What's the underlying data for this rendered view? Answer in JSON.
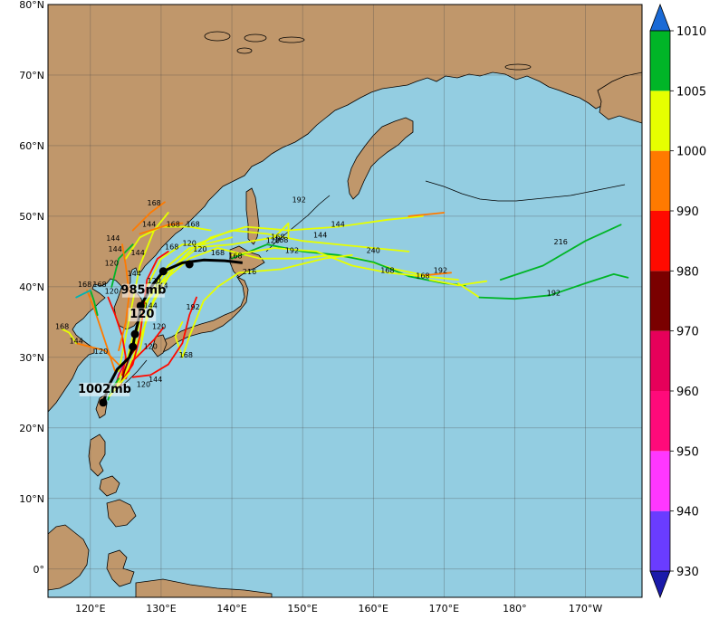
{
  "map": {
    "title": "",
    "extent": {
      "lon_min": 114,
      "lon_max": 198,
      "lat_min": -4,
      "lat_max": 80
    },
    "lat_ticks": [
      {
        "lat": 80,
        "label": "80°N"
      },
      {
        "lat": 70,
        "label": "70°N"
      },
      {
        "lat": 60,
        "label": "60°N"
      },
      {
        "lat": 50,
        "label": "50°N"
      },
      {
        "lat": 40,
        "label": "40°N"
      },
      {
        "lat": 30,
        "label": "30°N"
      },
      {
        "lat": 20,
        "label": "20°N"
      },
      {
        "lat": 10,
        "label": "10°N"
      },
      {
        "lat": 0,
        "label": "0°"
      }
    ],
    "lon_ticks": [
      {
        "lon": 120,
        "label": "120°E"
      },
      {
        "lon": 130,
        "label": "130°E"
      },
      {
        "lon": 140,
        "label": "140°E"
      },
      {
        "lon": 150,
        "label": "150°E"
      },
      {
        "lon": 160,
        "label": "160°E"
      },
      {
        "lon": 170,
        "label": "170°E"
      },
      {
        "lon": 180,
        "label": "180°"
      },
      {
        "lon": 190,
        "label": "170°W"
      }
    ],
    "colors": {
      "ocean": "#93cde1",
      "land": "#c0976b",
      "grid": "#4a4a4a"
    }
  },
  "colorbar": {
    "levels": [
      {
        "value": 930,
        "label": "930",
        "color": "#6a3cff"
      },
      {
        "value": 940,
        "label": "940",
        "color": "#ff37ff"
      },
      {
        "value": 950,
        "label": "950",
        "color": "#ff0a7a"
      },
      {
        "value": 960,
        "label": "960",
        "color": "#e6005a"
      },
      {
        "value": 970,
        "label": "970",
        "color": "#7a0000"
      },
      {
        "value": 980,
        "label": "980",
        "color": "#ff0a00"
      },
      {
        "value": 990,
        "label": "990",
        "color": "#ff7a00"
      },
      {
        "value": 1000,
        "label": "1000",
        "color": "#e6ff00"
      },
      {
        "value": 1005,
        "label": "1005",
        "color": "#00b527"
      },
      {
        "value": 1010,
        "label": "1010",
        "color": "#00b3b3"
      }
    ],
    "under_color": "#1a1aaa",
    "over_color": "#1a6ad6"
  },
  "chart_data": {
    "type": "map-tracks",
    "main_track": [
      [
        121.8,
        23.6
      ],
      [
        122.6,
        26.0
      ],
      [
        123.8,
        28.3
      ],
      [
        125.5,
        30.0
      ],
      [
        126.0,
        31.5
      ],
      [
        126.3,
        33.3
      ],
      [
        126.8,
        35.3
      ],
      [
        127.1,
        37.3
      ],
      [
        128.8,
        40.3
      ],
      [
        130.3,
        42.2
      ],
      [
        133.0,
        43.4
      ],
      [
        136.0,
        43.8
      ],
      [
        139.0,
        43.7
      ],
      [
        141.5,
        43.4
      ]
    ],
    "main_points": [
      [
        121.8,
        23.6
      ],
      [
        126.0,
        31.5
      ],
      [
        126.3,
        33.3
      ],
      [
        127.1,
        37.3
      ],
      [
        130.3,
        42.2
      ],
      [
        134.0,
        43.2
      ]
    ],
    "annotations": [
      {
        "text": "1002mb",
        "lon": 122.0,
        "lat": 25.0
      },
      {
        "text": "985mb",
        "lon": 127.5,
        "lat": 39.0
      },
      {
        "text": "120",
        "lon": 127.3,
        "lat": 35.6
      }
    ],
    "ensemble_tracks": [
      {
        "color": "#e6ff00",
        "points": [
          [
            123.5,
            25.5
          ],
          [
            125,
            29
          ],
          [
            126,
            33
          ],
          [
            128,
            38
          ],
          [
            131,
            42
          ],
          [
            135,
            46
          ],
          [
            140,
            48
          ],
          [
            145,
            47.5
          ],
          [
            150,
            46.5
          ],
          [
            155,
            46
          ],
          [
            160,
            45.5
          ],
          [
            165,
            45
          ]
        ]
      },
      {
        "color": "#e6ff00",
        "points": [
          [
            124,
            26
          ],
          [
            126,
            30
          ],
          [
            127.5,
            34
          ],
          [
            129,
            38
          ],
          [
            132,
            43
          ],
          [
            137,
            47
          ],
          [
            142,
            48.5
          ],
          [
            148,
            48
          ],
          [
            155,
            48.5
          ],
          [
            162,
            49.5
          ],
          [
            167,
            50
          ]
        ]
      },
      {
        "color": "#ff7a00",
        "points": [
          [
            165,
            50
          ],
          [
            170,
            50.5
          ]
        ]
      },
      {
        "color": "#e6ff00",
        "points": [
          [
            124,
            27
          ],
          [
            126,
            31
          ],
          [
            127,
            35
          ],
          [
            128.5,
            39
          ],
          [
            131,
            43
          ],
          [
            134,
            45.5
          ],
          [
            140,
            46
          ],
          [
            146,
            47
          ],
          [
            148,
            49
          ],
          [
            148,
            47
          ]
        ]
      },
      {
        "color": "#e6ff00",
        "points": [
          [
            124.5,
            27
          ],
          [
            127,
            31
          ],
          [
            128,
            36
          ],
          [
            130,
            40.5
          ],
          [
            134,
            44
          ],
          [
            138,
            45.5
          ],
          [
            144,
            44
          ],
          [
            150,
            44
          ],
          [
            154,
            44.5
          ],
          [
            158,
            44
          ],
          [
            163,
            42.5
          ],
          [
            168,
            41.5
          ]
        ]
      },
      {
        "color": "#ff7a00",
        "points": [
          [
            166,
            41.5
          ],
          [
            171,
            42
          ]
        ]
      },
      {
        "color": "#00b527",
        "points": [
          [
            140,
            44
          ],
          [
            145,
            46
          ],
          [
            150,
            45
          ],
          [
            155,
            44.5
          ],
          [
            160,
            43.5
          ],
          [
            165,
            41.5
          ],
          [
            170,
            40.5
          ],
          [
            173,
            40.2
          ]
        ]
      },
      {
        "color": "#e6ff00",
        "points": [
          [
            168,
            41
          ],
          [
            172,
            40.2
          ],
          [
            176,
            40.8
          ]
        ]
      },
      {
        "color": "#00b527",
        "points": [
          [
            178,
            41
          ],
          [
            184,
            43
          ],
          [
            190,
            46.5
          ],
          [
            195,
            48.8
          ]
        ]
      },
      {
        "color": "#e6ff00",
        "points": [
          [
            140,
            44.5
          ],
          [
            146,
            45.5
          ],
          [
            152,
            45
          ],
          [
            157,
            43
          ],
          [
            162,
            42
          ],
          [
            167,
            41.5
          ],
          [
            172,
            41
          ]
        ]
      },
      {
        "color": "#e6ff00",
        "points": [
          [
            172,
            40.5
          ],
          [
            175,
            38.5
          ]
        ]
      },
      {
        "color": "#00b527",
        "points": [
          [
            175,
            38.5
          ],
          [
            180,
            38.3
          ],
          [
            185,
            38.8
          ],
          [
            190,
            40.5
          ],
          [
            194,
            41.8
          ],
          [
            196,
            41.3
          ]
        ]
      },
      {
        "color": "#e6ff00",
        "points": [
          [
            133,
            35
          ],
          [
            132,
            33
          ],
          [
            133,
            30
          ],
          [
            134,
            33
          ],
          [
            136,
            38
          ],
          [
            138,
            40
          ],
          [
            141,
            42
          ],
          [
            147,
            42.5
          ],
          [
            153,
            44
          ],
          [
            157,
            44.5
          ]
        ]
      },
      {
        "color": "#e6ff00",
        "points": [
          [
            125,
            29
          ],
          [
            127,
            33
          ],
          [
            128,
            40
          ],
          [
            130,
            44
          ],
          [
            133,
            46
          ],
          [
            136,
            46
          ],
          [
            140,
            47
          ]
        ]
      },
      {
        "color": "#e6ff00",
        "points": [
          [
            124,
            28
          ],
          [
            125,
            33
          ],
          [
            126,
            38
          ],
          [
            127,
            43
          ],
          [
            129,
            48
          ],
          [
            131,
            50.5
          ]
        ]
      },
      {
        "color": "#ff7a00",
        "points": [
          [
            126,
            48
          ],
          [
            128.5,
            50.5
          ],
          [
            130.5,
            52
          ]
        ]
      },
      {
        "color": "#00b527",
        "points": [
          [
            123,
            40
          ],
          [
            124,
            44
          ],
          [
            126,
            46
          ]
        ]
      },
      {
        "color": "#e6ff00",
        "points": [
          [
            125,
            44
          ],
          [
            127,
            47
          ],
          [
            130,
            48.5
          ],
          [
            134,
            48.5
          ],
          [
            137,
            48
          ]
        ]
      },
      {
        "color": "#ff7a00",
        "points": [
          [
            127,
            47.5
          ],
          [
            131,
            48.8
          ],
          [
            133,
            49
          ]
        ]
      },
      {
        "color": "#ff0a00",
        "points": [
          [
            124,
            26
          ],
          [
            126,
            29
          ],
          [
            127,
            33
          ],
          [
            127.5,
            37
          ],
          [
            128,
            41
          ],
          [
            129.5,
            44
          ],
          [
            131,
            45
          ]
        ]
      },
      {
        "color": "#ff0a00",
        "points": [
          [
            125,
            27
          ],
          [
            126,
            29.5
          ],
          [
            127.5,
            31
          ],
          [
            129,
            32.5
          ],
          [
            130.3,
            34.2
          ]
        ]
      },
      {
        "color": "#ff0a00",
        "points": [
          [
            126,
            27.2
          ],
          [
            128.5,
            27.5
          ],
          [
            131,
            29
          ],
          [
            133,
            32
          ],
          [
            134,
            36
          ],
          [
            135,
            38.5
          ]
        ]
      },
      {
        "color": "#ff0a00",
        "points": [
          [
            124.5,
            27.5
          ],
          [
            125,
            30
          ],
          [
            124.5,
            33
          ],
          [
            123.5,
            36
          ],
          [
            122.5,
            38.5
          ]
        ]
      },
      {
        "color": "#ff7a00",
        "points": [
          [
            123.5,
            28
          ],
          [
            122.5,
            31
          ],
          [
            121.5,
            34
          ],
          [
            120.5,
            37
          ],
          [
            119.5,
            39.5
          ]
        ]
      },
      {
        "color": "#ff7a00",
        "points": [
          [
            124,
            29
          ],
          [
            122,
            31
          ],
          [
            120,
            31.5
          ],
          [
            118,
            32
          ]
        ]
      },
      {
        "color": "#e6ff00",
        "points": [
          [
            118,
            32
          ],
          [
            117,
            33.5
          ],
          [
            116,
            34
          ]
        ]
      },
      {
        "color": "#00b527",
        "points": [
          [
            121,
            36
          ],
          [
            120.5,
            38
          ],
          [
            120,
            39.5
          ]
        ]
      },
      {
        "color": "#00b3b3",
        "points": [
          [
            120,
            39.5
          ],
          [
            119,
            39
          ],
          [
            118,
            38.5
          ]
        ]
      },
      {
        "color": "#ff7a00",
        "points": [
          [
            124,
            31
          ],
          [
            125,
            35
          ],
          [
            125.5,
            39
          ],
          [
            125,
            43
          ],
          [
            124.5,
            46
          ]
        ]
      },
      {
        "color": "#7a0000",
        "points": [
          [
            124.3,
            26
          ],
          [
            124.8,
            28
          ],
          [
            125.5,
            30
          ],
          [
            126.5,
            31.5
          ]
        ]
      },
      {
        "color": "#e6005a",
        "points": [
          [
            123.5,
            25.8
          ],
          [
            124,
            27.5
          ],
          [
            125,
            29.5
          ]
        ]
      },
      {
        "color": "#00b527",
        "points": [
          [
            122.5,
            24
          ],
          [
            123,
            25.5
          ],
          [
            124,
            27
          ]
        ]
      },
      {
        "color": "#e6ff00",
        "points": [
          [
            122.7,
            24.5
          ],
          [
            124.2,
            26.3
          ],
          [
            125.5,
            27.8
          ]
        ]
      }
    ],
    "lead_labels": [
      {
        "text": "168",
        "lon": 129.0,
        "lat": 51.5
      },
      {
        "text": "168",
        "lon": 131.7,
        "lat": 48.5
      },
      {
        "text": "168",
        "lon": 134.5,
        "lat": 48.5
      },
      {
        "text": "144",
        "lon": 123.2,
        "lat": 46.5
      },
      {
        "text": "144",
        "lon": 123.5,
        "lat": 45.0
      },
      {
        "text": "144",
        "lon": 128.3,
        "lat": 48.5
      },
      {
        "text": "144",
        "lon": 126.7,
        "lat": 44.5
      },
      {
        "text": "120",
        "lon": 123.0,
        "lat": 43.0
      },
      {
        "text": "144",
        "lon": 126.2,
        "lat": 41.5
      },
      {
        "text": "168",
        "lon": 119.2,
        "lat": 40.0
      },
      {
        "text": "168",
        "lon": 121.3,
        "lat": 40.0
      },
      {
        "text": "120",
        "lon": 123.0,
        "lat": 39.0
      },
      {
        "text": "168",
        "lon": 116.0,
        "lat": 34.0
      },
      {
        "text": "144",
        "lon": 118.0,
        "lat": 32.0
      },
      {
        "text": "120",
        "lon": 121.5,
        "lat": 30.5
      },
      {
        "text": "144",
        "lon": 130.0,
        "lat": 39.8
      },
      {
        "text": "144",
        "lon": 128.5,
        "lat": 37.0
      },
      {
        "text": "120",
        "lon": 129.0,
        "lat": 40.5
      },
      {
        "text": "120",
        "lon": 129.7,
        "lat": 34.0
      },
      {
        "text": "120",
        "lon": 128.5,
        "lat": 31.2
      },
      {
        "text": "144",
        "lon": 129.2,
        "lat": 26.5
      },
      {
        "text": "120",
        "lon": 127.5,
        "lat": 25.8
      },
      {
        "text": "192",
        "lon": 134.5,
        "lat": 36.8
      },
      {
        "text": "168",
        "lon": 133.5,
        "lat": 30.0
      },
      {
        "text": "168",
        "lon": 131.5,
        "lat": 45.3
      },
      {
        "text": "120",
        "lon": 134.0,
        "lat": 45.8
      },
      {
        "text": "120",
        "lon": 135.5,
        "lat": 45.0
      },
      {
        "text": "168",
        "lon": 138.0,
        "lat": 44.5
      },
      {
        "text": "168",
        "lon": 140.5,
        "lat": 44.0
      },
      {
        "text": "216",
        "lon": 142.5,
        "lat": 41.8
      },
      {
        "text": "168",
        "lon": 146.5,
        "lat": 46.7
      },
      {
        "text": "120",
        "lon": 145.8,
        "lat": 46.2
      },
      {
        "text": "168",
        "lon": 147.0,
        "lat": 46.3
      },
      {
        "text": "192",
        "lon": 148.5,
        "lat": 44.8
      },
      {
        "text": "144",
        "lon": 152.5,
        "lat": 47.0
      },
      {
        "text": "144",
        "lon": 155.0,
        "lat": 48.5
      },
      {
        "text": "192",
        "lon": 149.5,
        "lat": 52.0
      },
      {
        "text": "240",
        "lon": 160.0,
        "lat": 44.8
      },
      {
        "text": "168",
        "lon": 162.0,
        "lat": 42.0
      },
      {
        "text": "168",
        "lon": 167.0,
        "lat": 41.2
      },
      {
        "text": "192",
        "lon": 169.5,
        "lat": 42.0
      },
      {
        "text": "216",
        "lon": 186.5,
        "lat": 46.0
      },
      {
        "text": "192",
        "lon": 185.5,
        "lat": 38.8
      }
    ]
  }
}
